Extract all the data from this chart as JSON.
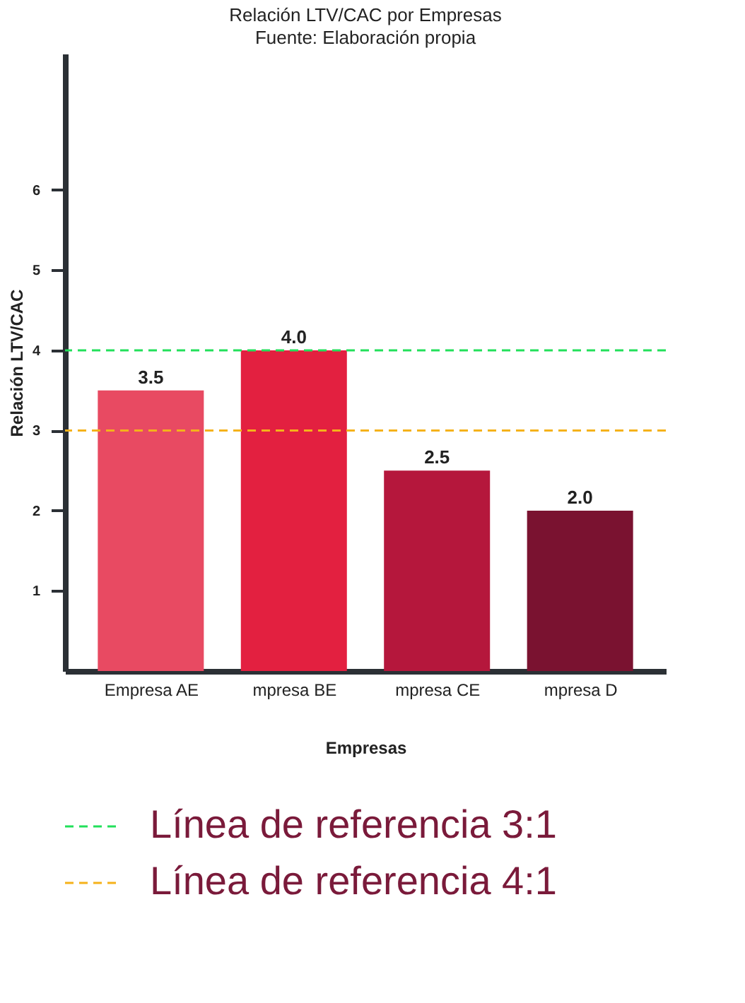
{
  "chart_data": {
    "type": "bar",
    "title": "Relación LTV/CAC por Empresas",
    "subtitle": "Fuente: Elaboración propia",
    "xlabel": "Empresas",
    "ylabel": "Relación LTV/CAC",
    "categories": [
      "Empresa AE",
      "mpresa BE",
      "mpresa CE",
      "mpresa D"
    ],
    "values": [
      3.5,
      4.0,
      2.5,
      2.0
    ],
    "colors": [
      "#e84a62",
      "#e32040",
      "#b5173c",
      "#7a1230"
    ],
    "value_labels": [
      "3.5",
      "4.0",
      "2.5",
      "2.0"
    ],
    "ylim": [
      0,
      7.7
    ],
    "yticks": [
      1,
      2,
      3,
      4,
      5,
      6
    ],
    "grid": false,
    "ref_lines": [
      {
        "axis": "y",
        "value": 4,
        "color": "#22e05a",
        "line_style": "dashed"
      },
      {
        "axis": "y",
        "value": 3,
        "color": "#f5b21a",
        "line_style": "dashed"
      }
    ],
    "annotations": [
      "Línea de referencia 3:1",
      "Línea de referencia 4:1"
    ]
  }
}
